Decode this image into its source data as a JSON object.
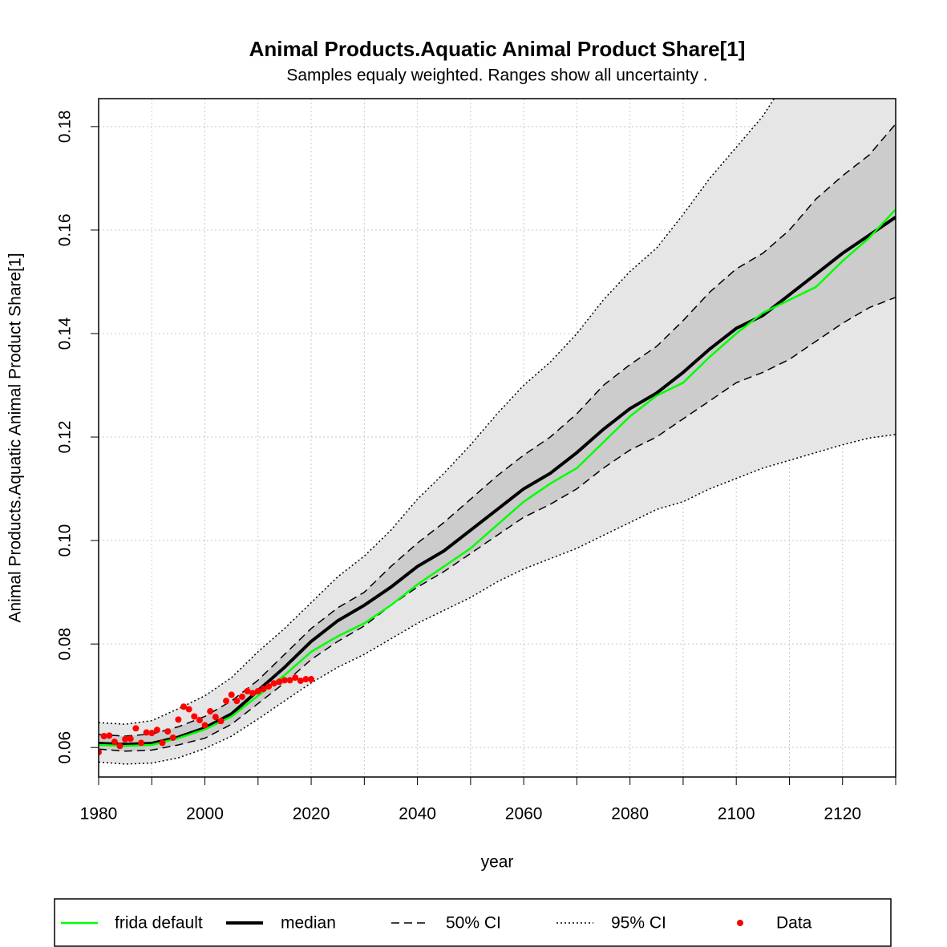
{
  "chart_data": {
    "type": "line",
    "title": "Animal Products.Aquatic Animal Product Share[1]",
    "subtitle": "Samples equaly weighted. Ranges show  all uncertainty .",
    "x_label": "year",
    "y_label": "Animal Products.Aquatic Animal Product Share[1]",
    "xlim": [
      1980,
      2130
    ],
    "ylim": [
      0.0543,
      0.1854
    ],
    "xticks": [
      1980,
      2000,
      2020,
      2040,
      2060,
      2080,
      2100,
      2120
    ],
    "xminorticks": [
      1990,
      2010,
      2030,
      2050,
      2070,
      2090,
      2110,
      2130
    ],
    "yticks": [
      0.06,
      0.08,
      {
        "value": 0.1,
        "label": "0.10"
      },
      0.12,
      0.14,
      0.16,
      0.18
    ],
    "grid": true,
    "legend": "bottom",
    "x": [
      1980,
      1985,
      1990,
      1995,
      2000,
      2005,
      2010,
      2015,
      2020,
      2025,
      2030,
      2035,
      2040,
      2045,
      2050,
      2055,
      2060,
      2065,
      2070,
      2075,
      2080,
      2085,
      2090,
      2095,
      2100,
      2105,
      2110,
      2115,
      2120,
      2125,
      2130
    ],
    "bands": [
      {
        "name": "95% CI",
        "fill": "#e6e6e6",
        "dash": "2,3",
        "lower": [
          0.0572,
          0.0568,
          0.057,
          0.058,
          0.0598,
          0.0622,
          0.0655,
          0.069,
          0.0725,
          0.0755,
          0.078,
          0.081,
          0.084,
          0.0865,
          0.089,
          0.092,
          0.0945,
          0.0965,
          0.0985,
          0.101,
          0.1035,
          0.106,
          0.1075,
          0.11,
          0.112,
          0.114,
          0.1155,
          0.117,
          0.1185,
          0.1198,
          0.1205
        ],
        "upper": [
          0.0648,
          0.0645,
          0.0652,
          0.0675,
          0.07,
          0.0735,
          0.0785,
          0.083,
          0.088,
          0.093,
          0.097,
          0.102,
          0.108,
          0.113,
          0.1185,
          0.1245,
          0.13,
          0.1345,
          0.14,
          0.1465,
          0.152,
          0.1565,
          0.163,
          0.17,
          0.176,
          0.182,
          0.19,
          0.197,
          0.203,
          0.209,
          0.215
        ]
      },
      {
        "name": "50% CI",
        "fill": "#cccccc",
        "dash": "10,6",
        "lower": [
          0.0597,
          0.0593,
          0.0595,
          0.0605,
          0.0618,
          0.0645,
          0.0685,
          0.0725,
          0.077,
          0.0805,
          0.0835,
          0.0875,
          0.091,
          0.094,
          0.0975,
          0.101,
          0.1045,
          0.107,
          0.11,
          0.114,
          0.1175,
          0.12,
          0.1235,
          0.127,
          0.1305,
          0.1325,
          0.135,
          0.1385,
          0.142,
          0.145,
          0.147
        ],
        "upper": [
          0.0625,
          0.0622,
          0.0626,
          0.064,
          0.066,
          0.069,
          0.073,
          0.078,
          0.083,
          0.087,
          0.09,
          0.095,
          0.0995,
          0.1035,
          0.108,
          0.1125,
          0.1165,
          0.12,
          0.1245,
          0.13,
          0.134,
          0.1375,
          0.1425,
          0.148,
          0.1525,
          0.1555,
          0.16,
          0.166,
          0.1705,
          0.1745,
          0.1805
        ]
      }
    ],
    "series": [
      {
        "name": "frida default",
        "color": "#00ff00",
        "width": 2.5,
        "values": [
          0.0605,
          0.0603,
          0.0605,
          0.0618,
          0.0635,
          0.066,
          0.07,
          0.074,
          0.0785,
          0.0815,
          0.084,
          0.0875,
          0.0915,
          0.095,
          0.0985,
          0.103,
          0.1075,
          0.111,
          0.114,
          0.119,
          0.124,
          0.128,
          0.1305,
          0.1355,
          0.14,
          0.144,
          0.1465,
          0.149,
          0.154,
          0.1585,
          0.164
        ]
      },
      {
        "name": "median",
        "color": "#000000",
        "width": 4,
        "values": [
          0.0608,
          0.0606,
          0.0608,
          0.062,
          0.0638,
          0.0665,
          0.071,
          0.0755,
          0.0805,
          0.0845,
          0.0875,
          0.091,
          0.095,
          0.098,
          0.102,
          0.106,
          0.11,
          0.113,
          0.117,
          0.1215,
          0.1255,
          0.1285,
          0.1325,
          0.137,
          0.141,
          0.1435,
          0.1475,
          0.1515,
          0.1555,
          0.159,
          0.1625
        ]
      }
    ],
    "points": {
      "name": "Data",
      "color": "#ff0000",
      "x": [
        1980,
        1981,
        1982,
        1983,
        1984,
        1985,
        1986,
        1987,
        1988,
        1989,
        1990,
        1991,
        1992,
        1993,
        1994,
        1995,
        1996,
        1997,
        1998,
        1999,
        2000,
        2001,
        2002,
        2003,
        2004,
        2005,
        2006,
        2007,
        2008,
        2009,
        2010,
        2011,
        2012,
        2013,
        2014,
        2015,
        2016,
        2017,
        2018,
        2019,
        2020
      ],
      "values": [
        0.0591,
        0.0622,
        0.0623,
        0.0611,
        0.0603,
        0.0616,
        0.0617,
        0.0637,
        0.0609,
        0.0629,
        0.0628,
        0.0634,
        0.0609,
        0.0631,
        0.0619,
        0.0654,
        0.0679,
        0.0674,
        0.066,
        0.0653,
        0.0643,
        0.067,
        0.0659,
        0.0651,
        0.069,
        0.0702,
        0.069,
        0.0698,
        0.0709,
        0.0705,
        0.0709,
        0.0713,
        0.0718,
        0.0724,
        0.0727,
        0.073,
        0.073,
        0.0735,
        0.0729,
        0.0732,
        0.0732
      ]
    }
  }
}
